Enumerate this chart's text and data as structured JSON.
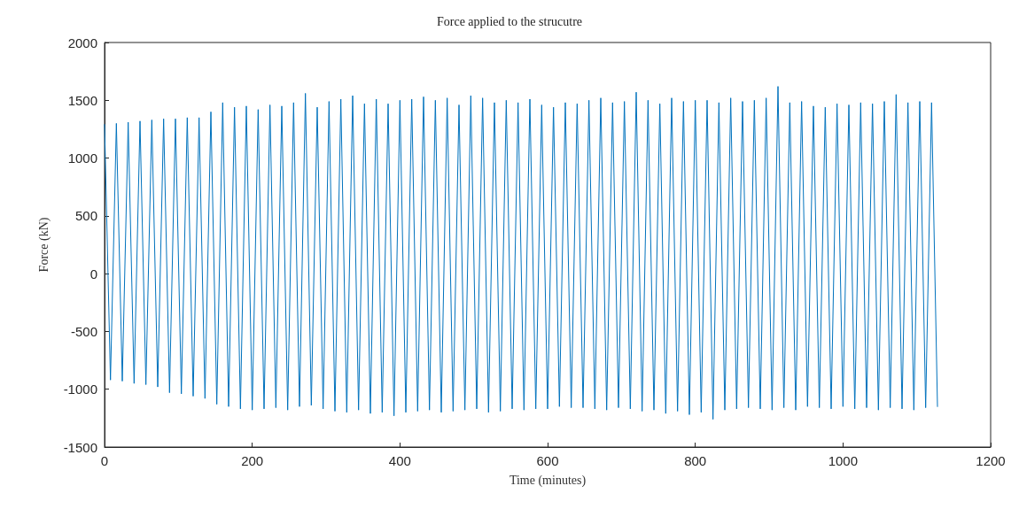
{
  "chart_data": {
    "type": "line",
    "title": "Force applied to the strucutre",
    "xlabel": "Time (minutes)",
    "ylabel": "Force (kN)",
    "x": [
      0,
      8,
      16,
      24,
      32,
      40,
      48,
      56,
      64,
      72,
      80,
      88,
      96,
      104,
      112,
      120,
      128,
      136,
      144,
      152,
      160,
      168,
      176,
      184,
      192,
      200,
      208,
      216,
      224,
      232,
      240,
      248,
      256,
      264,
      272,
      280,
      288,
      296,
      304,
      312,
      320,
      328,
      336,
      344,
      352,
      360,
      368,
      376,
      384,
      392,
      400,
      408,
      416,
      424,
      432,
      440,
      448,
      456,
      464,
      472,
      480,
      488,
      496,
      504,
      512,
      520,
      528,
      536,
      544,
      552,
      560,
      568,
      576,
      584,
      592,
      600,
      608,
      616,
      624,
      632,
      640,
      648,
      656,
      664,
      672,
      680,
      688,
      696,
      704,
      712,
      720,
      728,
      736,
      744,
      752,
      760,
      768,
      776,
      784,
      792,
      800,
      808,
      816,
      824,
      832,
      840,
      848,
      856,
      864,
      872,
      880,
      888,
      896,
      904,
      912,
      920,
      928,
      936,
      944,
      952,
      960,
      968,
      976,
      984,
      992,
      1000,
      1008,
      1016,
      1024,
      1032,
      1040,
      1048,
      1056,
      1064,
      1072,
      1080,
      1088,
      1096,
      1104,
      1112,
      1120,
      1128
    ],
    "series": [
      {
        "color": "#0072bd",
        "values": [
          1290,
          -920,
          1300,
          -930,
          1310,
          -950,
          1320,
          -960,
          1330,
          -980,
          1340,
          -1030,
          1340,
          -1040,
          1350,
          -1060,
          1350,
          -1080,
          1400,
          -1130,
          1480,
          -1150,
          1440,
          -1170,
          1450,
          -1180,
          1420,
          -1170,
          1460,
          -1160,
          1450,
          -1180,
          1480,
          -1150,
          1560,
          -1140,
          1440,
          -1170,
          1490,
          -1190,
          1510,
          -1200,
          1540,
          -1180,
          1470,
          -1210,
          1510,
          -1200,
          1470,
          -1230,
          1500,
          -1200,
          1510,
          -1190,
          1530,
          -1180,
          1500,
          -1200,
          1520,
          -1190,
          1460,
          -1180,
          1540,
          -1170,
          1520,
          -1200,
          1480,
          -1190,
          1500,
          -1170,
          1480,
          -1180,
          1510,
          -1170,
          1460,
          -1170,
          1440,
          -1150,
          1480,
          -1160,
          1470,
          -1160,
          1500,
          -1170,
          1520,
          -1180,
          1480,
          -1160,
          1490,
          -1170,
          1570,
          -1190,
          1500,
          -1180,
          1470,
          -1210,
          1520,
          -1190,
          1490,
          -1220,
          1500,
          -1200,
          1500,
          -1260,
          1480,
          -1180,
          1520,
          -1170,
          1490,
          -1160,
          1500,
          -1170,
          1520,
          -1180,
          1620,
          -1160,
          1480,
          -1180,
          1490,
          -1150,
          1450,
          -1160,
          1440,
          -1170,
          1470,
          -1150,
          1460,
          -1170,
          1480,
          -1160,
          1470,
          -1180,
          1490,
          -1160,
          1550,
          -1170,
          1480,
          -1180,
          1490,
          -1160,
          1480,
          -1150
        ]
      }
    ],
    "xlim": [
      0,
      1200
    ],
    "xticks": [
      0,
      200,
      400,
      600,
      800,
      1000,
      1200
    ],
    "ylim": [
      -1500,
      2000
    ],
    "yticks": [
      -1500,
      -1000,
      -500,
      0,
      500,
      1000,
      1500,
      2000
    ],
    "grid": false,
    "marker": "none",
    "line_style": "solid"
  }
}
